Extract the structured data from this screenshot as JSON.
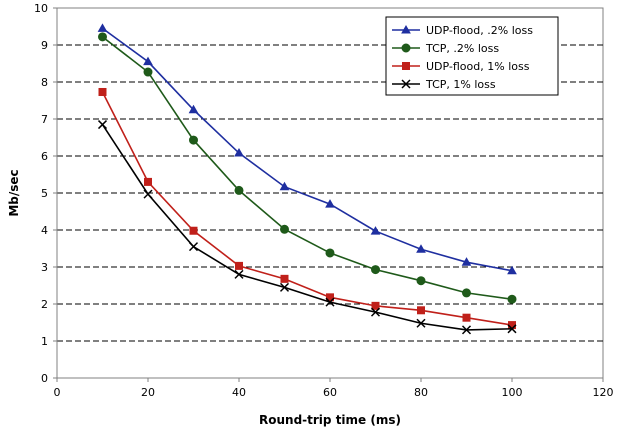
{
  "chart_data": {
    "type": "line",
    "xlabel": "Round-trip time (ms)",
    "ylabel": "Mb/sec",
    "xlim": [
      0,
      120
    ],
    "ylim": [
      0,
      10
    ],
    "x_ticks": [
      0,
      20,
      40,
      60,
      80,
      100,
      120
    ],
    "y_ticks": [
      0,
      1,
      2,
      3,
      4,
      5,
      6,
      7,
      8,
      9,
      10
    ],
    "grid": "horizontal dashed",
    "legend_position": "top-right",
    "x": [
      10,
      20,
      30,
      40,
      50,
      60,
      70,
      80,
      90,
      100
    ],
    "series": [
      {
        "name": "UDP-flood, .2% loss",
        "color": "#1f2fa0",
        "marker": "triangle",
        "values": [
          9.45,
          8.55,
          7.25,
          6.08,
          5.17,
          4.7,
          3.97,
          3.48,
          3.13,
          2.9
        ]
      },
      {
        "name": "TCP, .2% loss",
        "color": "#1f5a1a",
        "marker": "circle",
        "values": [
          9.22,
          8.27,
          6.43,
          5.07,
          4.02,
          3.38,
          2.93,
          2.63,
          2.3,
          2.13
        ]
      },
      {
        "name": "UDP-flood, 1% loss",
        "color": "#c0201a",
        "marker": "square",
        "values": [
          7.73,
          5.3,
          3.98,
          3.03,
          2.68,
          2.18,
          1.95,
          1.83,
          1.63,
          1.43
        ]
      },
      {
        "name": "TCP, 1% loss",
        "color": "#000000",
        "marker": "x",
        "values": [
          6.85,
          4.97,
          3.55,
          2.8,
          2.45,
          2.05,
          1.78,
          1.48,
          1.3,
          1.33
        ]
      }
    ]
  }
}
